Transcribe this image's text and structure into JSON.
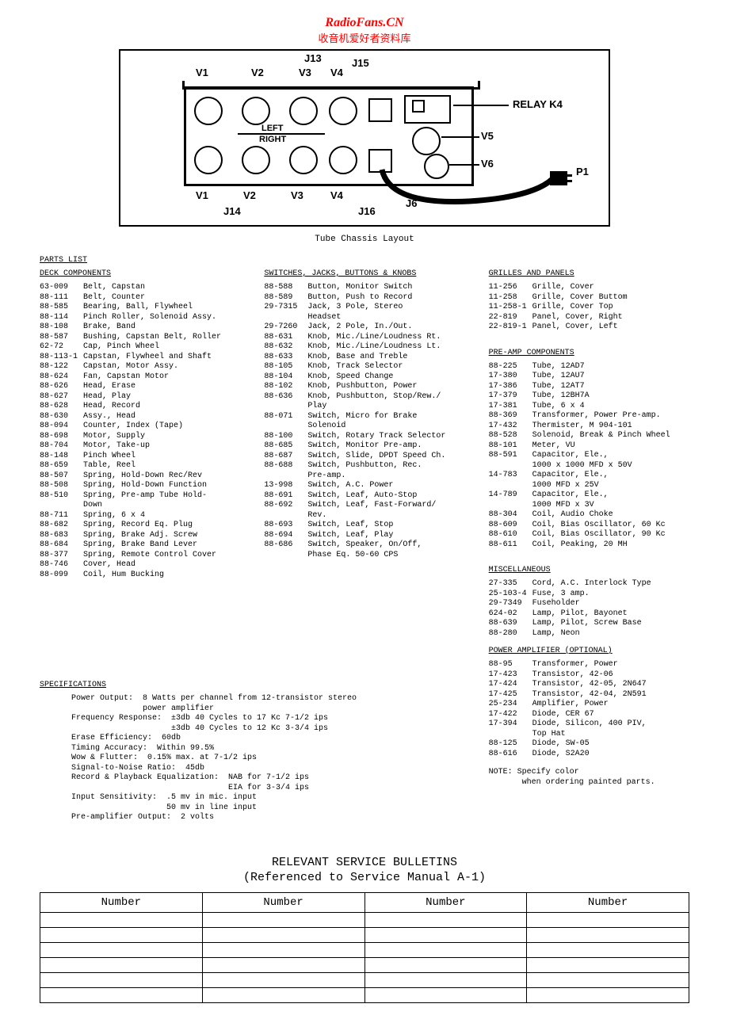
{
  "watermark": {
    "line1": "RadioFans.CN",
    "line2": "收音机爱好者资料库"
  },
  "diagram": {
    "caption": "Tube Chassis Layout",
    "labels": {
      "v1t": "V1",
      "v2t": "V2",
      "v3t": "V3",
      "v4t": "V4",
      "j13": "J13",
      "j15": "J15",
      "left": "LEFT",
      "right": "RIGHT",
      "relay": "RELAY K4",
      "v5": "V5",
      "v6": "V6",
      "v1b": "V1",
      "v2b": "V2",
      "v3b": "V3",
      "v4b": "V4",
      "j14": "J14",
      "j16": "J16",
      "j6": "J6",
      "p1": "P1"
    }
  },
  "parts_list_heading": "PARTS LIST",
  "col1": {
    "heading": "DECK COMPONENTS",
    "items": [
      [
        "63-009",
        "Belt, Capstan"
      ],
      [
        "88-111",
        "Belt, Counter"
      ],
      [
        "88-585",
        "Bearing, Ball, Flywheel"
      ],
      [
        "88-114",
        "Pinch Roller, Solenoid Assy."
      ],
      [
        "88-108",
        "Brake, Band"
      ],
      [
        "88-587",
        "Bushing, Capstan Belt, Roller"
      ],
      [
        "62-72",
        "Cap, Pinch Wheel"
      ],
      [
        "88-113-1",
        "Capstan, Flywheel and Shaft"
      ],
      [
        "88-122",
        "Capstan, Motor Assy."
      ],
      [
        "88-624",
        "Fan, Capstan Motor"
      ],
      [
        "88-626",
        "Head, Erase"
      ],
      [
        "88-627",
        "Head, Play"
      ],
      [
        "88-628",
        "Head, Record"
      ],
      [
        "88-630",
        "Assy., Head"
      ],
      [
        "88-094",
        "Counter, Index (Tape)"
      ],
      [
        "88-698",
        "Motor, Supply"
      ],
      [
        "88-704",
        "Motor, Take-up"
      ],
      [
        "",
        ""
      ],
      [
        "88-148",
        "Pinch Wheel"
      ],
      [
        "",
        ""
      ],
      [
        "88-659",
        "Table, Reel"
      ],
      [
        "88-507",
        "Spring, Hold-Down Rec/Rev"
      ],
      [
        "88-508",
        "Spring, Hold-Down Function"
      ],
      [
        "88-510",
        "Spring, Pre-amp Tube Hold-"
      ],
      [
        "",
        "  Down"
      ],
      [
        "88-711",
        "Spring, 6 x 4"
      ],
      [
        "88-682",
        "Spring, Record Eq. Plug"
      ],
      [
        "88-683",
        "Spring, Brake Adj. Screw"
      ],
      [
        "88-684",
        "Spring, Brake Band Lever"
      ],
      [
        "88-377",
        "Spring, Remote Control Cover"
      ],
      [
        "88-746",
        "Cover, Head"
      ],
      [
        "88-099",
        "Coil, Hum Bucking"
      ]
    ]
  },
  "col2": {
    "heading": "SWITCHES, JACKS, BUTTONS & KNOBS",
    "items": [
      [
        "88-588",
        "Button, Monitor Switch"
      ],
      [
        "88-589",
        "Button, Push to Record"
      ],
      [
        "",
        ""
      ],
      [
        "29-7315",
        "Jack, 3 Pole, Stereo"
      ],
      [
        "",
        "  Headset"
      ],
      [
        "29-7260",
        "Jack, 2 Pole, In./Out."
      ],
      [
        "88-631",
        "Knob, Mic./Line/Loudness Rt."
      ],
      [
        "88-632",
        "Knob, Mic./Line/Loudness Lt."
      ],
      [
        "88-633",
        "Knob, Base and Treble"
      ],
      [
        "88-105",
        "Knob, Track Selector"
      ],
      [
        "88-104",
        "Knob, Speed Change"
      ],
      [
        "88-102",
        "Knob, Pushbutton, Power"
      ],
      [
        "88-636",
        "Knob, Pushbutton, Stop/Rew./"
      ],
      [
        "",
        "  Play"
      ],
      [
        "88-071",
        "Switch, Micro for Brake"
      ],
      [
        "",
        "  Solenoid"
      ],
      [
        "88-100",
        "Switch, Rotary Track Selector"
      ],
      [
        "88-685",
        "Switch, Monitor Pre-amp."
      ],
      [
        "",
        ""
      ],
      [
        "88-687",
        "Switch, Slide, DPDT Speed Ch."
      ],
      [
        "88-688",
        "Switch, Pushbutton, Rec."
      ],
      [
        "",
        "  Pre-amp."
      ],
      [
        "13-998",
        "Switch, A.C. Power"
      ],
      [
        "88-691",
        "Switch, Leaf, Auto-Stop"
      ],
      [
        "88-692",
        "Switch, Leaf, Fast-Forward/"
      ],
      [
        "",
        "  Rev."
      ],
      [
        "88-693",
        "Switch, Leaf, Stop"
      ],
      [
        "88-694",
        "Switch, Leaf, Play"
      ],
      [
        "88-686",
        "Switch, Speaker, On/Off,"
      ],
      [
        "",
        "  Phase Eq. 50-60 CPS"
      ]
    ]
  },
  "col3a": {
    "heading": "GRILLES AND PANELS",
    "items": [
      [
        "11-256",
        "Grille, Cover"
      ],
      [
        "11-258",
        "Grille, Cover Buttom"
      ],
      [
        "11-258-1",
        "Grille, Cover Top"
      ],
      [
        "22-819",
        "Panel, Cover, Right"
      ],
      [
        "22-819-1",
        "Panel, Cover, Left"
      ]
    ]
  },
  "col3b": {
    "heading": "PRE-AMP COMPONENTS",
    "items": [
      [
        "88-225",
        "Tube, 12AD7"
      ],
      [
        "17-380",
        "Tube, 12AU7"
      ],
      [
        "17-386",
        "Tube, 12AT7"
      ],
      [
        "17-379",
        "Tube, 12BH7A"
      ],
      [
        "17-381",
        "Tube, 6 x 4"
      ],
      [
        "88-369",
        "Transformer, Power Pre-amp."
      ],
      [
        "17-432",
        "Thermister, M 904-101"
      ],
      [
        "88-528",
        "Solenoid, Break & Pinch Wheel"
      ],
      [
        "88-101",
        "Meter, VU"
      ],
      [
        "88-591",
        "Capacitor, Ele.,"
      ],
      [
        "",
        "  1000 x 1000 MFD x 50V"
      ],
      [
        "14-783",
        "Capacitor, Ele.,"
      ],
      [
        "",
        "  1000 MFD x 25V"
      ],
      [
        "14-789",
        "Capacitor, Ele.,"
      ],
      [
        "",
        "  1000 MFD x 3V"
      ],
      [
        "88-304",
        "Coil, Audio Choke"
      ],
      [
        "88-609",
        "Coil, Bias Oscillator, 60 Kc"
      ],
      [
        "88-610",
        "Coil, Bias Oscillator, 90 Kc"
      ],
      [
        "88-611",
        "Coil, Peaking, 20 MH"
      ]
    ]
  },
  "col3c": {
    "heading": "MISCELLANEOUS",
    "items": [
      [
        "27-335",
        "Cord, A.C. Interlock Type"
      ],
      [
        "25-103-4",
        "Fuse, 3 amp."
      ],
      [
        "29-7349",
        "Fuseholder"
      ],
      [
        "624-02",
        "Lamp, Pilot, Bayonet"
      ],
      [
        "88-639",
        "Lamp, Pilot, Screw Base"
      ],
      [
        "88-280",
        "Lamp, Neon"
      ]
    ]
  },
  "col3d": {
    "heading": "POWER AMPLIFIER (OPTIONAL)",
    "items": [
      [
        "88-95",
        "Transformer, Power"
      ],
      [
        "17-423",
        "Transistor, 42-06"
      ],
      [
        "17-424",
        "Transistor, 42-05, 2N647"
      ],
      [
        "17-425",
        "Transistor, 42-04, 2N591"
      ],
      [
        "25-234",
        "Amplifier, Power"
      ],
      [
        "17-422",
        "Diode, CER 67"
      ],
      [
        "17-394",
        "Diode, Silicon, 400 PIV,"
      ],
      [
        "",
        "  Top Hat"
      ],
      [
        "88-125",
        "Diode, SW-05"
      ],
      [
        "88-616",
        "Diode, S2A20"
      ]
    ]
  },
  "note": {
    "l1": "NOTE:  Specify color",
    "l2": "when ordering painted parts."
  },
  "specs": {
    "heading": "SPECIFICATIONS",
    "body": "Power Output:  8 Watts per channel from 12-transistor stereo\n               power amplifier\nFrequency Response:  ±3db 40 Cycles to 17 Kc 7-1/2 ips\n                     ±3db 40 Cycles to 12 Kc 3-3/4 ips\nErase Efficiency:  60db\nTiming Accuracy:  Within 99.5%\nWow & Flutter:  0.15% max. at 7-1/2 ips\nSignal-to-Noise Ratio:  45db\nRecord & Playback Equalization:  NAB for 7-1/2 ips\n                                 EIA for 3-3/4 ips\nInput Sensitivity:  .5 mv in mic. input\n                    50 mv in line input\nPre-amplifier Output:  2 volts"
  },
  "bulletins": {
    "title_l1": "RELEVANT SERVICE BULLETINS",
    "title_l2": "(Referenced to Service Manual A-1)",
    "header": "Number"
  }
}
